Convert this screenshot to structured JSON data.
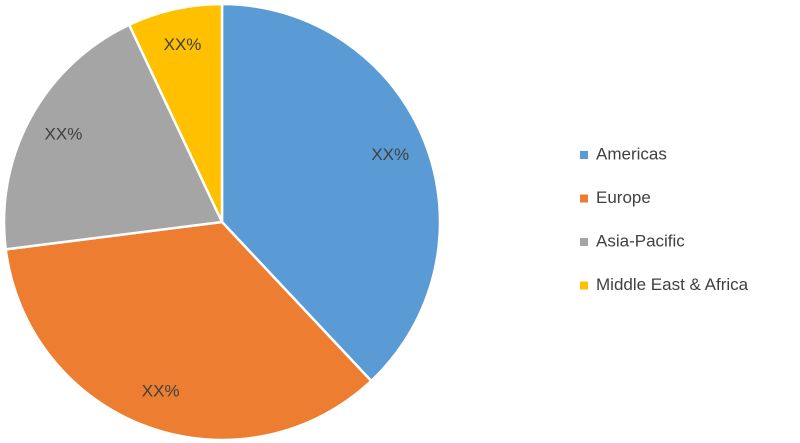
{
  "chart_data": {
    "type": "pie",
    "categories": [
      "Americas",
      "Europe",
      "Asia-Pacific",
      "Middle East & Africa"
    ],
    "values": [
      38,
      35,
      20,
      7
    ],
    "value_labels": [
      "XX%",
      "XX%",
      "XX%",
      "XX%"
    ],
    "colors": [
      "#5b9bd5",
      "#ed7d31",
      "#a5a5a5",
      "#ffc000"
    ],
    "legend": "right"
  }
}
